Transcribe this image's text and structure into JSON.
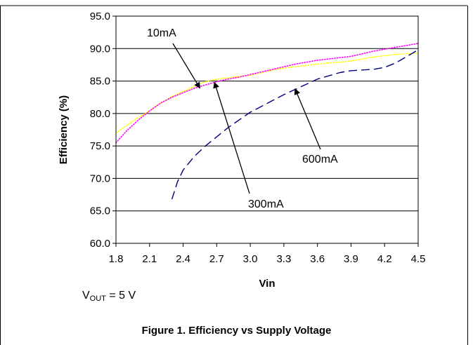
{
  "chart_data": {
    "type": "line",
    "title": "",
    "xlabel": "Vin",
    "ylabel": "Efficiency (%)",
    "xlim": [
      1.8,
      4.5
    ],
    "ylim": [
      60.0,
      95.0
    ],
    "grid": "horizontal",
    "x_ticks": [
      "1.8",
      "2.1",
      "2.4",
      "2.7",
      "3.0",
      "3.3",
      "3.6",
      "3.9",
      "4.2",
      "4.5"
    ],
    "y_ticks": [
      "60.0",
      "65.0",
      "70.0",
      "75.0",
      "80.0",
      "85.0",
      "90.0",
      "95.0"
    ],
    "series": [
      {
        "name": "10mA",
        "color": "#ffff00",
        "style": "dotted",
        "points": [
          [
            1.8,
            77.0
          ],
          [
            1.9,
            78.2
          ],
          [
            2.0,
            79.4
          ],
          [
            2.1,
            80.4
          ],
          [
            2.2,
            81.6
          ],
          [
            2.3,
            82.6
          ],
          [
            2.4,
            83.4
          ],
          [
            2.5,
            84.2
          ],
          [
            2.6,
            84.9
          ],
          [
            2.7,
            85.3
          ],
          [
            2.8,
            85.5
          ],
          [
            2.9,
            85.7
          ],
          [
            3.0,
            85.9
          ],
          [
            3.1,
            86.3
          ],
          [
            3.2,
            86.7
          ],
          [
            3.3,
            87.0
          ],
          [
            3.4,
            87.2
          ],
          [
            3.5,
            87.4
          ],
          [
            3.6,
            87.6
          ],
          [
            3.7,
            87.8
          ],
          [
            3.8,
            87.9
          ],
          [
            3.9,
            88.1
          ],
          [
            4.0,
            88.4
          ],
          [
            4.1,
            88.7
          ],
          [
            4.2,
            88.9
          ],
          [
            4.3,
            89.1
          ],
          [
            4.4,
            89.2
          ],
          [
            4.5,
            89.3
          ]
        ]
      },
      {
        "name": "300mA",
        "color": "#ff00ff",
        "style": "dotted",
        "points": [
          [
            1.8,
            75.5
          ],
          [
            1.9,
            77.4
          ],
          [
            2.0,
            79.0
          ],
          [
            2.1,
            80.4
          ],
          [
            2.2,
            81.6
          ],
          [
            2.3,
            82.5
          ],
          [
            2.4,
            83.2
          ],
          [
            2.5,
            83.9
          ],
          [
            2.6,
            84.4
          ],
          [
            2.7,
            84.9
          ],
          [
            2.8,
            85.3
          ],
          [
            2.9,
            85.6
          ],
          [
            3.0,
            86.0
          ],
          [
            3.1,
            86.4
          ],
          [
            3.2,
            86.8
          ],
          [
            3.3,
            87.2
          ],
          [
            3.4,
            87.6
          ],
          [
            3.5,
            87.9
          ],
          [
            3.6,
            88.2
          ],
          [
            3.7,
            88.4
          ],
          [
            3.8,
            88.6
          ],
          [
            3.9,
            88.8
          ],
          [
            4.0,
            89.2
          ],
          [
            4.1,
            89.6
          ],
          [
            4.2,
            89.9
          ],
          [
            4.3,
            90.2
          ],
          [
            4.4,
            90.5
          ],
          [
            4.5,
            90.8
          ]
        ]
      },
      {
        "name": "600mA",
        "color": "#000080",
        "style": "dashed",
        "points": [
          [
            2.3,
            66.8
          ],
          [
            2.35,
            69.5
          ],
          [
            2.4,
            71.3
          ],
          [
            2.5,
            73.4
          ],
          [
            2.6,
            75.0
          ],
          [
            2.7,
            76.4
          ],
          [
            2.8,
            77.8
          ],
          [
            2.9,
            79.0
          ],
          [
            3.0,
            80.2
          ],
          [
            3.1,
            81.1
          ],
          [
            3.2,
            82.0
          ],
          [
            3.3,
            82.9
          ],
          [
            3.4,
            83.7
          ],
          [
            3.5,
            84.5
          ],
          [
            3.6,
            85.3
          ],
          [
            3.7,
            85.8
          ],
          [
            3.8,
            86.3
          ],
          [
            3.9,
            86.6
          ],
          [
            4.0,
            86.7
          ],
          [
            4.1,
            86.8
          ],
          [
            4.2,
            87.1
          ],
          [
            4.3,
            87.8
          ],
          [
            4.4,
            88.8
          ],
          [
            4.5,
            89.8
          ]
        ]
      }
    ],
    "annotations": [
      {
        "label": "10mA",
        "series": "10mA",
        "target": [
          2.55,
          83.9
        ]
      },
      {
        "label": "300mA",
        "series": "300mA",
        "target": [
          2.68,
          84.8
        ]
      },
      {
        "label": "600mA",
        "series": "600mA",
        "target": [
          3.4,
          83.8
        ]
      }
    ]
  },
  "note": {
    "v": "V",
    "sub": "OUT",
    "rest": " = 5 V"
  },
  "caption": "Figure 1. Efficiency vs Supply Voltage"
}
